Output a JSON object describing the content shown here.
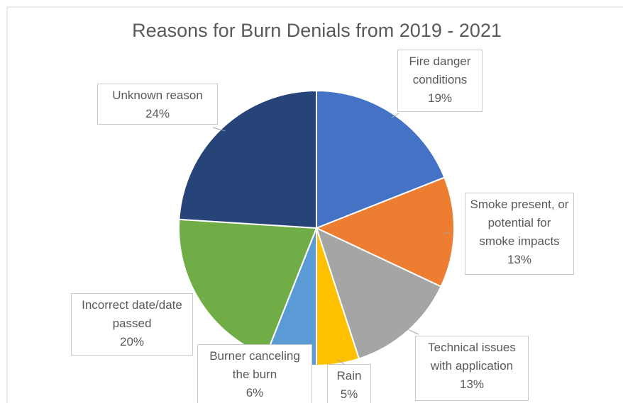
{
  "chart_data": {
    "type": "pie",
    "title": "Reasons for Burn Denials from 2019 - 2021",
    "categories": [
      "Fire danger conditions",
      "Smoke present, or potential for smoke impacts",
      "Technical issues with application",
      "Rain",
      "Burner canceling the burn",
      "Incorrect date/date passed",
      "Unknown reason"
    ],
    "values": [
      19,
      13,
      13,
      5,
      6,
      20,
      24
    ],
    "value_labels": [
      "19%",
      "13%",
      "13%",
      "5%",
      "6%",
      "20%",
      "24%"
    ],
    "colors": [
      "#4472c4",
      "#ed7d31",
      "#a5a5a5",
      "#ffc000",
      "#5b9bd5",
      "#70ad47",
      "#264478"
    ]
  }
}
